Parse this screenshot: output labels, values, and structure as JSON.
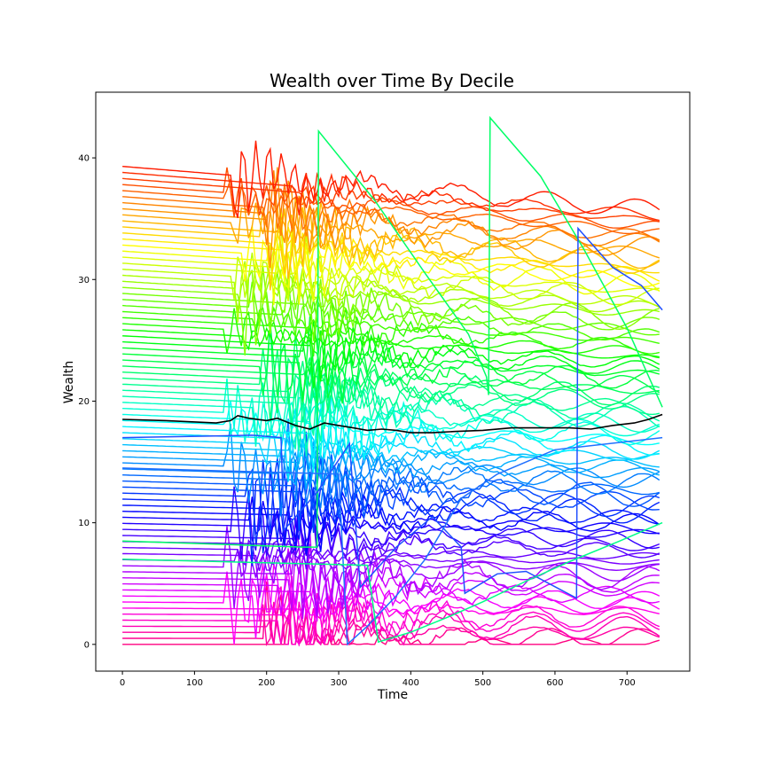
{
  "chart_data": {
    "type": "line",
    "title": "Wealth over Time By Decile",
    "xlabel": "Time",
    "ylabel": "Wealth",
    "xlim": [
      -37,
      787
    ],
    "ylim": [
      -2.2,
      45.4
    ],
    "x_ticks": [
      0,
      100,
      200,
      300,
      400,
      500,
      600,
      700
    ],
    "y_ticks": [
      0,
      10,
      20,
      30,
      40
    ],
    "grid": false,
    "legend": "none",
    "x_end": 749,
    "agent_lines": {
      "count": 80,
      "colormap": "hsv",
      "initial_wealth_range": [
        0,
        39.3
      ],
      "final_wealth_range": [
        0,
        35.7
      ],
      "activity_onset_time": 140,
      "note_free": true
    },
    "highlight_series": [
      {
        "color": "#00ff66",
        "points": [
          [
            0,
            8.5
          ],
          [
            250,
            8.0
          ],
          [
            270,
            8.0
          ],
          [
            272,
            42.2
          ],
          [
            350,
            36.5
          ],
          [
            420,
            30.5
          ],
          [
            480,
            25.5
          ],
          [
            505,
            22.0
          ],
          [
            508,
            20.5
          ],
          [
            510,
            43.3
          ],
          [
            580,
            38.5
          ],
          [
            640,
            32.5
          ],
          [
            700,
            26.0
          ],
          [
            749,
            19.5
          ]
        ]
      },
      {
        "color": "#1f4fff",
        "points": [
          [
            0,
            17.0
          ],
          [
            180,
            17.2
          ],
          [
            220,
            17.0
          ],
          [
            224,
            9.4
          ],
          [
            270,
            12.5
          ],
          [
            315,
            16.5
          ],
          [
            330,
            4.7
          ],
          [
            380,
            8.0
          ],
          [
            430,
            10.5
          ],
          [
            470,
            8.0
          ],
          [
            475,
            4.2
          ],
          [
            520,
            5.8
          ],
          [
            560,
            6.0
          ],
          [
            630,
            3.8
          ],
          [
            632,
            34.2
          ],
          [
            680,
            31.0
          ],
          [
            720,
            29.5
          ],
          [
            749,
            27.5
          ]
        ]
      },
      {
        "color": "#2070ff",
        "points": [
          [
            0,
            14.5
          ],
          [
            300,
            14.0
          ],
          [
            312,
            0.0
          ],
          [
            340,
            1.5
          ],
          [
            380,
            4.0
          ],
          [
            420,
            7.0
          ],
          [
            470,
            12.0
          ],
          [
            520,
            14.0
          ],
          [
            600,
            16.0
          ],
          [
            749,
            17.0
          ]
        ]
      },
      {
        "color": "#00ff88",
        "points": [
          [
            0,
            7.0
          ],
          [
            340,
            6.5
          ],
          [
            355,
            0.2
          ],
          [
            400,
            1.0
          ],
          [
            450,
            2.2
          ],
          [
            500,
            3.5
          ],
          [
            560,
            5.2
          ],
          [
            620,
            6.8
          ],
          [
            690,
            8.5
          ],
          [
            749,
            10.0
          ]
        ]
      }
    ],
    "mean_series": {
      "color": "#000000",
      "points": [
        [
          0,
          18.5
        ],
        [
          60,
          18.4
        ],
        [
          130,
          18.2
        ],
        [
          150,
          18.4
        ],
        [
          160,
          18.8
        ],
        [
          175,
          18.6
        ],
        [
          200,
          18.4
        ],
        [
          215,
          18.6
        ],
        [
          240,
          18.0
        ],
        [
          260,
          17.7
        ],
        [
          280,
          18.2
        ],
        [
          300,
          18.0
        ],
        [
          320,
          17.8
        ],
        [
          340,
          17.6
        ],
        [
          360,
          17.7
        ],
        [
          380,
          17.6
        ],
        [
          400,
          17.4
        ],
        [
          430,
          17.4
        ],
        [
          460,
          17.5
        ],
        [
          500,
          17.6
        ],
        [
          540,
          17.8
        ],
        [
          580,
          17.8
        ],
        [
          620,
          17.8
        ],
        [
          650,
          17.7
        ],
        [
          680,
          18.0
        ],
        [
          710,
          18.2
        ],
        [
          730,
          18.5
        ],
        [
          749,
          18.9
        ]
      ]
    }
  }
}
